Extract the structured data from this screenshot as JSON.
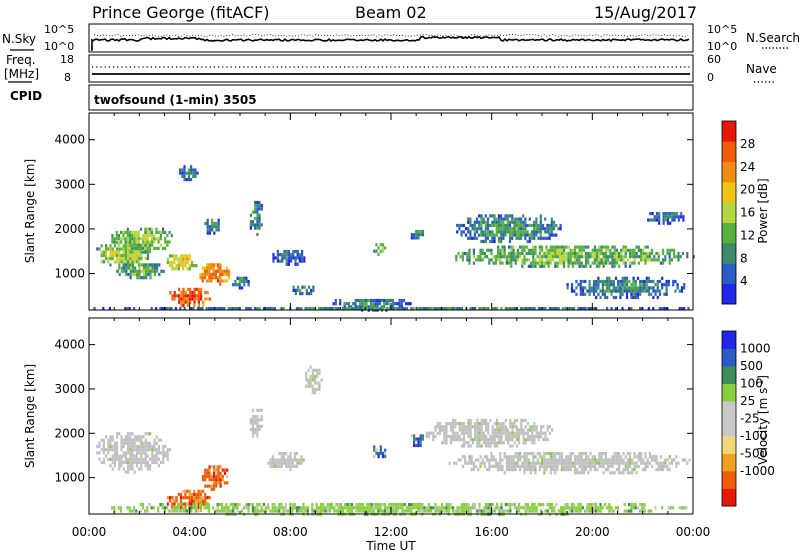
{
  "header": {
    "station": "Prince George (fitACF)",
    "beam": "Beam 02",
    "date": "15/Aug/2017"
  },
  "top_panels": {
    "nsky_label": "N.Sky",
    "nsky_ticks": [
      "10^5",
      "10^0"
    ],
    "nsearch_label": "N.Search",
    "freq_label_1": "Freq.",
    "freq_label_2": "[MHz]",
    "freq_ticks": [
      "18",
      "8"
    ],
    "nave_ticks": [
      "60",
      "0"
    ],
    "nave_label": "Nave",
    "cpid_label": "CPID",
    "cpid_value": "twofsound (1-min) 3505"
  },
  "time_axis": {
    "ticks": [
      "00:00",
      "04:00",
      "08:00",
      "12:00",
      "16:00",
      "20:00",
      "00:00"
    ],
    "label": "Time UT"
  },
  "range_axis": {
    "label": "Slant Range [km]",
    "ticks": [
      "1000",
      "2000",
      "3000",
      "4000"
    ]
  },
  "colors": {
    "power_scale": [
      "#1f28e8",
      "#2a5cc6",
      "#3a8a6c",
      "#55b040",
      "#b4d640",
      "#f0c414",
      "#f08c10",
      "#f05c08",
      "#e81808"
    ],
    "velocity_scale": [
      "#e81808",
      "#f05c08",
      "#f0a020",
      "#f0d878",
      "#c8c8c8",
      "#c8c8c8",
      "#88d040",
      "#3c8c5c",
      "#2a5cc6",
      "#1f28e8"
    ],
    "ground_scatter": "#c0c0c0"
  },
  "chart_data": [
    {
      "type": "heatmap",
      "title": "Power [dB]",
      "xlabel": "Time UT",
      "ylabel": "Slant Range [km]",
      "x_range_hours": [
        0,
        24
      ],
      "y_range_km": [
        180,
        4600
      ],
      "colorbar": {
        "label": "Power [dB]",
        "min": 0,
        "max": 32,
        "ticks": [
          4,
          8,
          12,
          16,
          20,
          24,
          28
        ]
      },
      "blobs": [
        {
          "t": [
            0.2,
            2.4
          ],
          "r": [
            1150,
            1800
          ],
          "v": 16
        },
        {
          "t": [
            0.8,
            3.4
          ],
          "r": [
            1500,
            2100
          ],
          "v": 14
        },
        {
          "t": [
            1.0,
            3.0
          ],
          "r": [
            900,
            1300
          ],
          "v": 12
        },
        {
          "t": [
            3.1,
            4.8
          ],
          "r": [
            250,
            750
          ],
          "v": 30
        },
        {
          "t": [
            4.3,
            5.6
          ],
          "r": [
            750,
            1300
          ],
          "v": 28
        },
        {
          "t": [
            3.0,
            4.3
          ],
          "r": [
            1050,
            1500
          ],
          "v": 20
        },
        {
          "t": [
            3.4,
            4.3
          ],
          "r": [
            3100,
            3500
          ],
          "v": 8
        },
        {
          "t": [
            6.3,
            6.9
          ],
          "r": [
            1900,
            2700
          ],
          "v": 10
        },
        {
          "t": [
            4.5,
            5.2
          ],
          "r": [
            1900,
            2300
          ],
          "v": 8
        },
        {
          "t": [
            5.6,
            6.4
          ],
          "r": [
            700,
            1000
          ],
          "v": 8
        },
        {
          "t": [
            7.2,
            8.6
          ],
          "r": [
            1200,
            1600
          ],
          "v": 6
        },
        {
          "t": [
            8.0,
            9.0
          ],
          "r": [
            550,
            800
          ],
          "v": 8
        },
        {
          "t": [
            9.5,
            12.8
          ],
          "r": [
            200,
            500
          ],
          "v": 8
        },
        {
          "t": [
            11.2,
            11.8
          ],
          "r": [
            1450,
            1750
          ],
          "v": 16
        },
        {
          "t": [
            12.7,
            13.4
          ],
          "r": [
            1750,
            2050
          ],
          "v": 8
        },
        {
          "t": [
            14.2,
            24.0
          ],
          "r": [
            1150,
            1700
          ],
          "v": 14
        },
        {
          "t": [
            14.5,
            18.8
          ],
          "r": [
            1700,
            2400
          ],
          "v": 10
        },
        {
          "t": [
            18.8,
            23.7
          ],
          "r": [
            450,
            1000
          ],
          "v": 8
        },
        {
          "t": [
            22.0,
            23.8
          ],
          "r": [
            2150,
            2450
          ],
          "v": 8
        },
        {
          "t": [
            0.0,
            24.0
          ],
          "r": [
            180,
            320
          ],
          "v": 8
        }
      ]
    },
    {
      "type": "heatmap",
      "title": "Velocity [m s-1]",
      "xlabel": "Time UT",
      "ylabel": "Slant Range [km]",
      "x_range_hours": [
        0,
        24
      ],
      "y_range_km": [
        180,
        4600
      ],
      "colorbar": {
        "label": "Velocity [m s",
        "label_sup": "-1",
        "label_end": "]",
        "ticks": [
          "1000",
          "500",
          "100",
          "25",
          "-25",
          "-100",
          "-500",
          "-1000"
        ]
      },
      "blobs": [
        {
          "t": [
            0.2,
            3.2
          ],
          "r": [
            1150,
            2100
          ],
          "v": 0
        },
        {
          "t": [
            3.0,
            4.9
          ],
          "r": [
            250,
            800
          ],
          "v": -100
        },
        {
          "t": [
            4.4,
            5.6
          ],
          "r": [
            750,
            1350
          ],
          "v": -500
        },
        {
          "t": [
            6.3,
            6.9
          ],
          "r": [
            1900,
            2700
          ],
          "v": 0
        },
        {
          "t": [
            7.0,
            8.5
          ],
          "r": [
            1200,
            1650
          ],
          "v": 0
        },
        {
          "t": [
            8.5,
            9.2
          ],
          "r": [
            2900,
            3600
          ],
          "v": 0
        },
        {
          "t": [
            11.2,
            11.8
          ],
          "r": [
            1450,
            1800
          ],
          "v": 500
        },
        {
          "t": [
            12.7,
            13.3
          ],
          "r": [
            1700,
            2050
          ],
          "v": 500
        },
        {
          "t": [
            13.2,
            18.5
          ],
          "r": [
            1700,
            2400
          ],
          "v": 0
        },
        {
          "t": [
            14.2,
            24.0
          ],
          "r": [
            1100,
            1650
          ],
          "v": 0
        },
        {
          "t": [
            0.0,
            24.0
          ],
          "r": [
            180,
            500
          ],
          "v": 100
        }
      ]
    }
  ]
}
